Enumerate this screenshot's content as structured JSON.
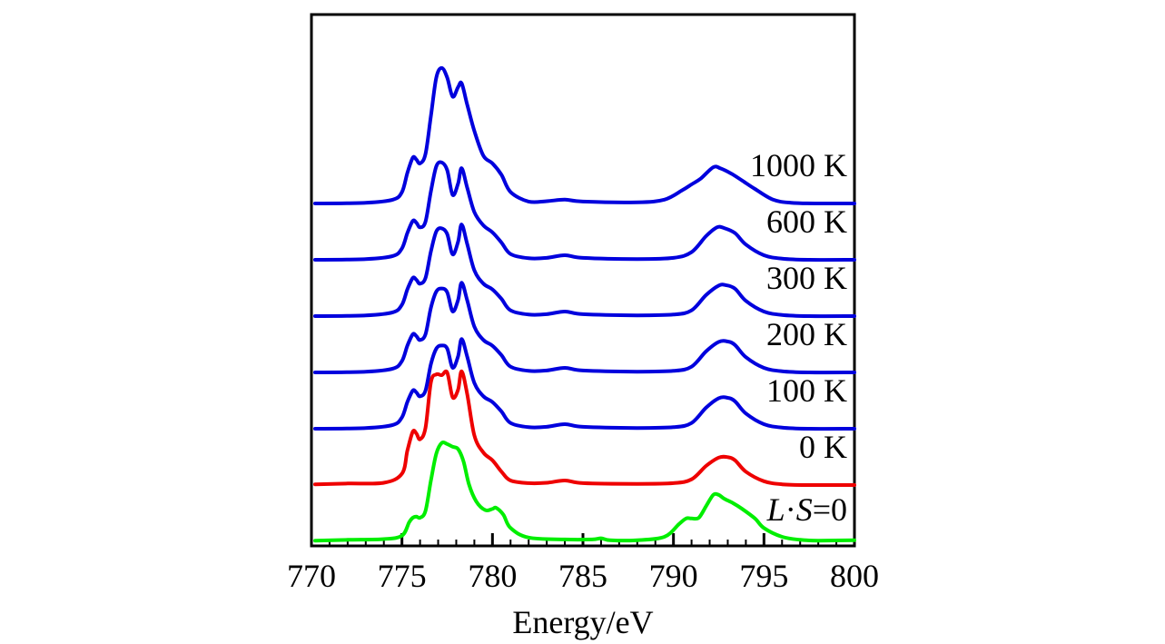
{
  "chart_data": {
    "type": "line",
    "title": "",
    "xlabel": "Energy/eV",
    "ylabel": "",
    "xlim": [
      770,
      800
    ],
    "xticks": [
      770,
      775,
      780,
      785,
      790,
      795,
      800
    ],
    "xtick_labels": [
      "770",
      "775",
      "780",
      "785",
      "790",
      "795",
      "800"
    ],
    "grid": false,
    "legend": "none; curves labelled directly at right",
    "colors": {
      "frame": "#000000",
      "finite_T": "#0000dd",
      "zero_K": "#ee0000",
      "no_soc": "#00ee00"
    },
    "label_parts": {
      "L": "L",
      "dot": "·",
      "S": "S",
      "eq": "=0"
    },
    "series": [
      {
        "name": "L·S=0",
        "label": "",
        "color": "#00ee00",
        "offset": 0,
        "style": "no_soc",
        "points": [
          [
            770.2,
            0.02
          ],
          [
            772,
            0.04
          ],
          [
            774,
            0.06
          ],
          [
            775,
            0.15
          ],
          [
            775.4,
            0.5
          ],
          [
            775.6,
            0.62
          ],
          [
            775.8,
            0.65
          ],
          [
            776,
            0.62
          ],
          [
            776.3,
            0.8
          ],
          [
            776.6,
            1.6
          ],
          [
            776.9,
            2.3
          ],
          [
            777.2,
            2.58
          ],
          [
            777.5,
            2.55
          ],
          [
            777.8,
            2.48
          ],
          [
            778.1,
            2.42
          ],
          [
            778.4,
            2.1
          ],
          [
            778.7,
            1.5
          ],
          [
            779.1,
            1.05
          ],
          [
            779.6,
            0.82
          ],
          [
            780,
            0.85
          ],
          [
            780.2,
            0.88
          ],
          [
            780.6,
            0.7
          ],
          [
            781,
            0.35
          ],
          [
            782,
            0.1
          ],
          [
            784,
            0.05
          ],
          [
            785.5,
            0.05
          ],
          [
            786,
            0.08
          ],
          [
            786.5,
            0.03
          ],
          [
            788,
            0.03
          ],
          [
            789.5,
            0.12
          ],
          [
            790.3,
            0.45
          ],
          [
            790.7,
            0.6
          ],
          [
            791,
            0.6
          ],
          [
            791.4,
            0.62
          ],
          [
            791.8,
            0.92
          ],
          [
            792.2,
            1.22
          ],
          [
            792.5,
            1.22
          ],
          [
            792.8,
            1.12
          ],
          [
            793.3,
            1.0
          ],
          [
            793.8,
            0.85
          ],
          [
            794.5,
            0.6
          ],
          [
            795,
            0.35
          ],
          [
            796,
            0.12
          ],
          [
            797,
            0.04
          ],
          [
            798,
            0.02
          ],
          [
            800,
            0.03
          ]
        ]
      },
      {
        "name": "0 K",
        "label": "0 K",
        "color": "#ee0000",
        "offset": 1,
        "style": "curve",
        "points": [
          [
            770.2,
            0.02
          ],
          [
            772,
            0.04
          ],
          [
            774,
            0.06
          ],
          [
            775,
            0.3
          ],
          [
            775.3,
            0.9
          ],
          [
            775.6,
            1.4
          ],
          [
            775.8,
            1.35
          ],
          [
            776,
            1.2
          ],
          [
            776.3,
            1.5
          ],
          [
            776.6,
            2.7
          ],
          [
            776.9,
            2.9
          ],
          [
            777.2,
            2.88
          ],
          [
            777.5,
            2.95
          ],
          [
            777.8,
            2.3
          ],
          [
            778.1,
            2.5
          ],
          [
            778.3,
            2.98
          ],
          [
            778.6,
            2.4
          ],
          [
            779,
            1.3
          ],
          [
            779.5,
            0.85
          ],
          [
            780,
            0.65
          ],
          [
            780.5,
            0.35
          ],
          [
            781,
            0.12
          ],
          [
            782,
            0.05
          ],
          [
            783,
            0.06
          ],
          [
            784,
            0.12
          ],
          [
            785,
            0.05
          ],
          [
            788,
            0.03
          ],
          [
            790,
            0.05
          ],
          [
            791,
            0.15
          ],
          [
            791.8,
            0.5
          ],
          [
            792.5,
            0.72
          ],
          [
            793,
            0.73
          ],
          [
            793.4,
            0.65
          ],
          [
            794,
            0.35
          ],
          [
            795,
            0.1
          ],
          [
            796,
            0.02
          ],
          [
            797.5,
            0
          ],
          [
            800,
            0
          ]
        ]
      },
      {
        "name": "100 K",
        "label": "100 K",
        "color": "#0000dd",
        "offset": 2,
        "style": "curve",
        "points": [
          [
            770.2,
            0
          ],
          [
            773,
            0.02
          ],
          [
            774.5,
            0.1
          ],
          [
            775,
            0.3
          ],
          [
            775.3,
            0.7
          ],
          [
            775.6,
            1.0
          ],
          [
            775.8,
            0.95
          ],
          [
            776,
            0.85
          ],
          [
            776.3,
            1.0
          ],
          [
            776.6,
            1.7
          ],
          [
            776.9,
            2.1
          ],
          [
            777.2,
            2.18
          ],
          [
            777.5,
            2.1
          ],
          [
            777.8,
            1.6
          ],
          [
            778.1,
            1.9
          ],
          [
            778.3,
            2.35
          ],
          [
            778.6,
            1.9
          ],
          [
            779,
            1.2
          ],
          [
            779.5,
            0.85
          ],
          [
            780,
            0.7
          ],
          [
            780.5,
            0.45
          ],
          [
            781,
            0.15
          ],
          [
            782,
            0.04
          ],
          [
            783,
            0.05
          ],
          [
            784,
            0.12
          ],
          [
            785,
            0.05
          ],
          [
            788,
            0.02
          ],
          [
            790,
            0.04
          ],
          [
            791,
            0.15
          ],
          [
            791.8,
            0.55
          ],
          [
            792.5,
            0.8
          ],
          [
            793,
            0.81
          ],
          [
            793.4,
            0.72
          ],
          [
            794,
            0.4
          ],
          [
            795,
            0.12
          ],
          [
            796,
            0.03
          ],
          [
            797.5,
            0
          ],
          [
            800,
            0
          ]
        ]
      },
      {
        "name": "200 K",
        "label": "200 K",
        "color": "#0000dd",
        "offset": 3,
        "style": "curve",
        "points": [
          [
            770.2,
            0
          ],
          [
            773,
            0.02
          ],
          [
            774.5,
            0.1
          ],
          [
            775,
            0.3
          ],
          [
            775.3,
            0.7
          ],
          [
            775.6,
            1.0
          ],
          [
            775.8,
            0.95
          ],
          [
            776,
            0.85
          ],
          [
            776.3,
            1.0
          ],
          [
            776.6,
            1.7
          ],
          [
            776.9,
            2.12
          ],
          [
            777.2,
            2.2
          ],
          [
            777.5,
            2.1
          ],
          [
            777.8,
            1.6
          ],
          [
            778.1,
            1.9
          ],
          [
            778.3,
            2.35
          ],
          [
            778.6,
            1.9
          ],
          [
            779,
            1.2
          ],
          [
            779.5,
            0.85
          ],
          [
            780,
            0.7
          ],
          [
            780.5,
            0.45
          ],
          [
            781,
            0.15
          ],
          [
            782,
            0.04
          ],
          [
            783,
            0.05
          ],
          [
            784,
            0.12
          ],
          [
            785,
            0.05
          ],
          [
            788,
            0.02
          ],
          [
            790,
            0.04
          ],
          [
            791,
            0.15
          ],
          [
            791.8,
            0.55
          ],
          [
            792.5,
            0.8
          ],
          [
            793,
            0.81
          ],
          [
            793.4,
            0.72
          ],
          [
            794,
            0.4
          ],
          [
            795,
            0.12
          ],
          [
            796,
            0.03
          ],
          [
            797.5,
            0
          ],
          [
            800,
            0
          ]
        ]
      },
      {
        "name": "300 K",
        "label": "300 K",
        "color": "#0000dd",
        "offset": 4,
        "style": "curve",
        "points": [
          [
            770.2,
            0
          ],
          [
            773,
            0.02
          ],
          [
            774.5,
            0.1
          ],
          [
            775,
            0.3
          ],
          [
            775.3,
            0.7
          ],
          [
            775.6,
            1.0
          ],
          [
            775.8,
            0.95
          ],
          [
            776,
            0.85
          ],
          [
            776.3,
            1.0
          ],
          [
            776.6,
            1.7
          ],
          [
            776.9,
            2.22
          ],
          [
            777.2,
            2.3
          ],
          [
            777.5,
            2.15
          ],
          [
            777.8,
            1.62
          ],
          [
            778.1,
            1.95
          ],
          [
            778.3,
            2.4
          ],
          [
            778.6,
            1.9
          ],
          [
            779,
            1.2
          ],
          [
            779.5,
            0.85
          ],
          [
            780,
            0.7
          ],
          [
            780.5,
            0.45
          ],
          [
            781,
            0.15
          ],
          [
            782,
            0.04
          ],
          [
            783,
            0.05
          ],
          [
            784,
            0.12
          ],
          [
            785,
            0.05
          ],
          [
            788,
            0.02
          ],
          [
            790,
            0.04
          ],
          [
            791,
            0.15
          ],
          [
            791.8,
            0.55
          ],
          [
            792.5,
            0.8
          ],
          [
            792.9,
            0.81
          ],
          [
            793.4,
            0.72
          ],
          [
            794,
            0.4
          ],
          [
            795,
            0.12
          ],
          [
            796,
            0.03
          ],
          [
            797.5,
            0
          ],
          [
            800,
            0
          ]
        ]
      },
      {
        "name": "600 K",
        "label": "600 K",
        "color": "#0000dd",
        "offset": 5,
        "style": "curve",
        "points": [
          [
            770.2,
            0
          ],
          [
            773,
            0.02
          ],
          [
            774.5,
            0.1
          ],
          [
            775,
            0.3
          ],
          [
            775.3,
            0.7
          ],
          [
            775.6,
            1.02
          ],
          [
            775.8,
            0.97
          ],
          [
            776,
            0.85
          ],
          [
            776.3,
            1.0
          ],
          [
            776.6,
            1.8
          ],
          [
            776.9,
            2.45
          ],
          [
            777.2,
            2.55
          ],
          [
            777.5,
            2.35
          ],
          [
            777.8,
            1.7
          ],
          [
            778.1,
            2.0
          ],
          [
            778.3,
            2.4
          ],
          [
            778.6,
            1.9
          ],
          [
            779,
            1.25
          ],
          [
            779.5,
            0.9
          ],
          [
            780,
            0.72
          ],
          [
            780.5,
            0.45
          ],
          [
            781,
            0.15
          ],
          [
            782,
            0.04
          ],
          [
            783,
            0.05
          ],
          [
            784,
            0.12
          ],
          [
            785,
            0.05
          ],
          [
            788,
            0.02
          ],
          [
            790,
            0.05
          ],
          [
            791,
            0.2
          ],
          [
            791.8,
            0.62
          ],
          [
            792.4,
            0.85
          ],
          [
            792.8,
            0.83
          ],
          [
            793.4,
            0.7
          ],
          [
            794,
            0.4
          ],
          [
            795,
            0.12
          ],
          [
            796,
            0.03
          ],
          [
            797.5,
            0
          ],
          [
            800,
            0
          ]
        ]
      },
      {
        "name": "1000 K",
        "label": "1000 K",
        "color": "#0000dd",
        "offset": 6,
        "style": "curve",
        "points": [
          [
            770.2,
            0
          ],
          [
            773,
            0.02
          ],
          [
            774.5,
            0.1
          ],
          [
            775,
            0.3
          ],
          [
            775.3,
            0.8
          ],
          [
            775.6,
            1.2
          ],
          [
            775.8,
            1.15
          ],
          [
            776,
            1.05
          ],
          [
            776.3,
            1.3
          ],
          [
            776.6,
            2.3
          ],
          [
            776.9,
            3.3
          ],
          [
            777.2,
            3.55
          ],
          [
            777.5,
            3.3
          ],
          [
            777.8,
            2.8
          ],
          [
            778.1,
            3.05
          ],
          [
            778.3,
            3.15
          ],
          [
            778.6,
            2.6
          ],
          [
            779,
            1.9
          ],
          [
            779.5,
            1.25
          ],
          [
            780,
            1.05
          ],
          [
            780.5,
            0.75
          ],
          [
            781,
            0.3
          ],
          [
            782,
            0.05
          ],
          [
            783,
            0.06
          ],
          [
            784,
            0.1
          ],
          [
            785,
            0.05
          ],
          [
            788,
            0.03
          ],
          [
            789.5,
            0.1
          ],
          [
            790.5,
            0.35
          ],
          [
            791,
            0.5
          ],
          [
            791.5,
            0.65
          ],
          [
            792.2,
            0.95
          ],
          [
            792.6,
            0.92
          ],
          [
            793.2,
            0.78
          ],
          [
            793.8,
            0.6
          ],
          [
            794.5,
            0.38
          ],
          [
            795.5,
            0.1
          ],
          [
            796.5,
            0.02
          ],
          [
            798,
            0
          ],
          [
            800,
            0
          ]
        ]
      }
    ]
  }
}
